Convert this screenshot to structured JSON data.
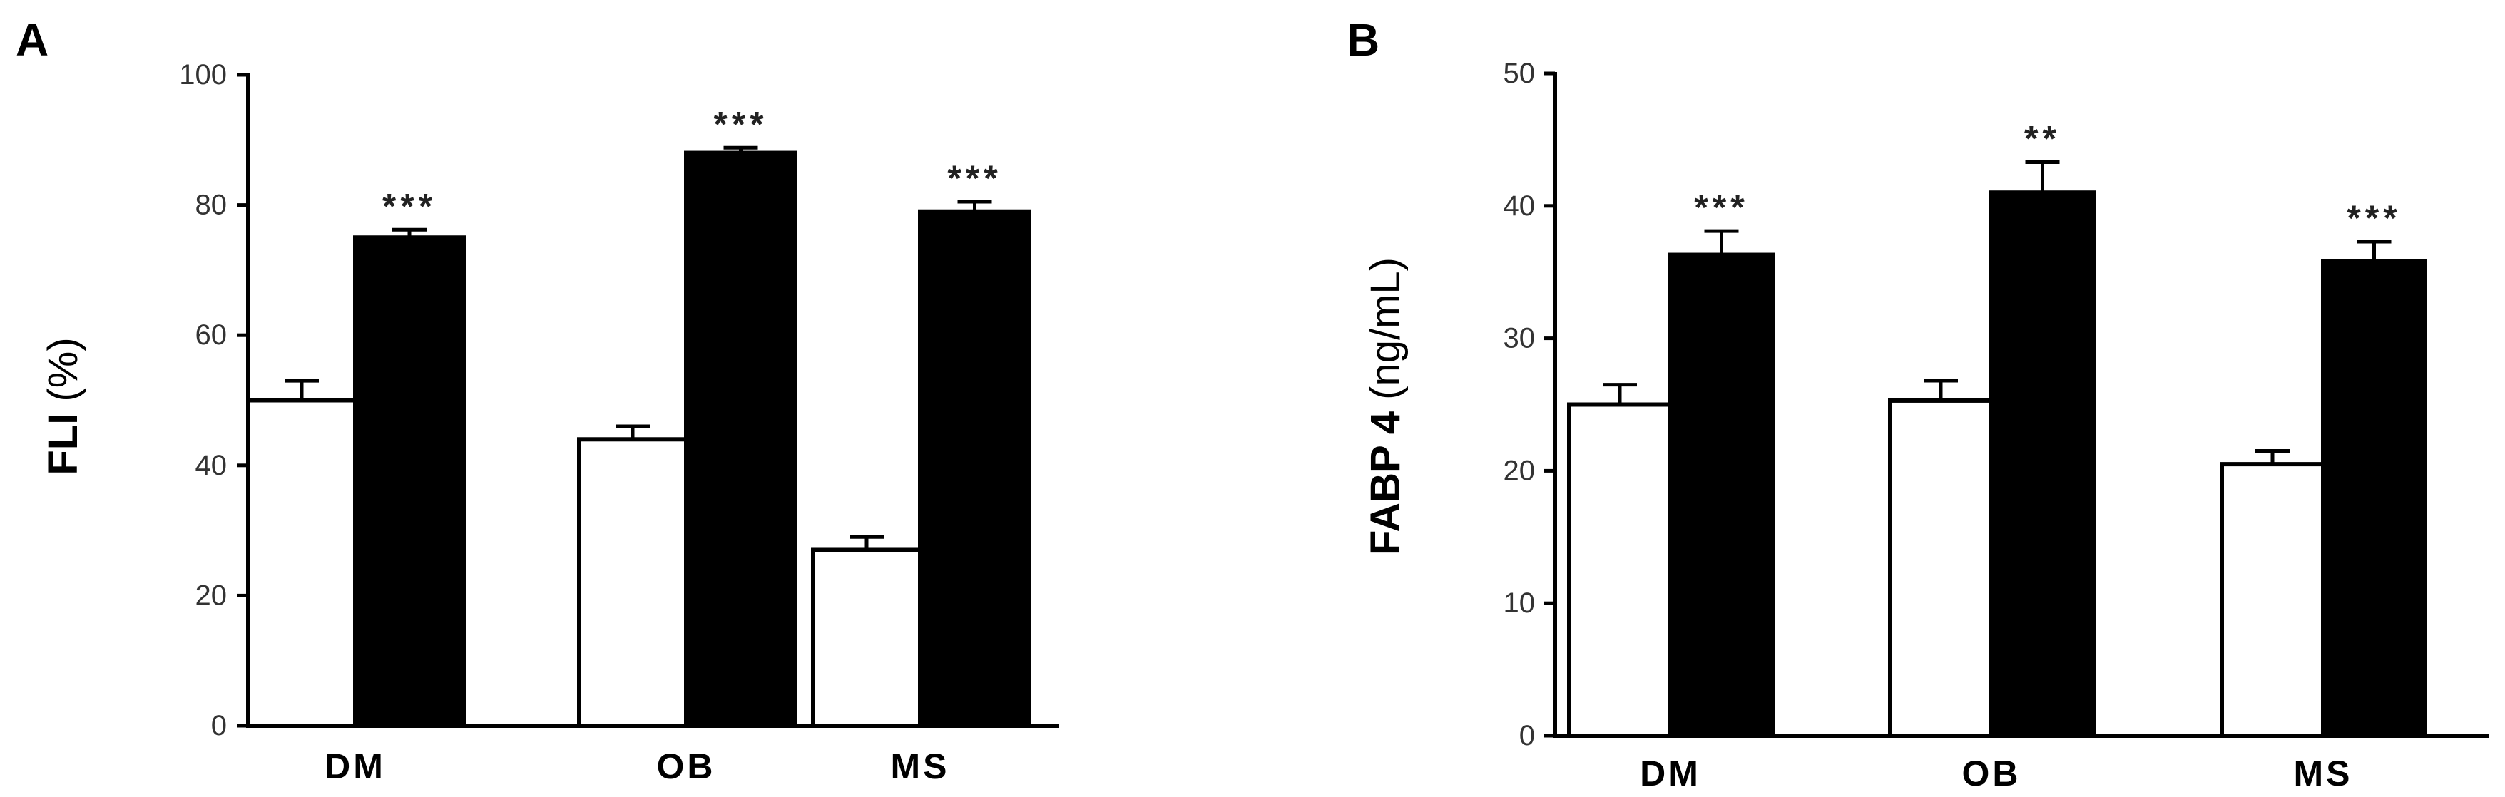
{
  "chart_data": [
    {
      "type": "bar",
      "panel": "A",
      "ylabel_main": "FLI",
      "ylabel_unit": "(%)",
      "ylim": [
        0,
        100
      ],
      "yticks": [
        0,
        20,
        40,
        60,
        80,
        100
      ],
      "categories": [
        "DM",
        "OB",
        "MS"
      ],
      "series": [
        {
          "color": "#ffffff",
          "values": [
            50,
            44,
            27
          ],
          "errors": [
            3,
            2,
            2
          ]
        },
        {
          "color": "#000000",
          "values": [
            75,
            88,
            79
          ],
          "errors": [
            1.2,
            0.8,
            1.5
          ]
        }
      ],
      "significance": [
        "***",
        "***",
        "***"
      ],
      "grid": false
    },
    {
      "type": "bar",
      "panel": "B",
      "ylabel_main": "FABP 4",
      "ylabel_unit": "(ng/mL)",
      "ylim": [
        0,
        50
      ],
      "yticks": [
        0,
        10,
        20,
        30,
        40,
        50
      ],
      "categories": [
        "DM",
        "OB",
        "MS"
      ],
      "series": [
        {
          "color": "#ffffff",
          "values": [
            25,
            25.3,
            20.5
          ],
          "errors": [
            1.5,
            1.5,
            1
          ]
        },
        {
          "color": "#000000",
          "values": [
            36.3,
            41,
            35.8
          ],
          "errors": [
            1.8,
            2.3,
            1.5
          ]
        }
      ],
      "significance": [
        "***",
        "**",
        "***"
      ],
      "grid": false
    }
  ]
}
